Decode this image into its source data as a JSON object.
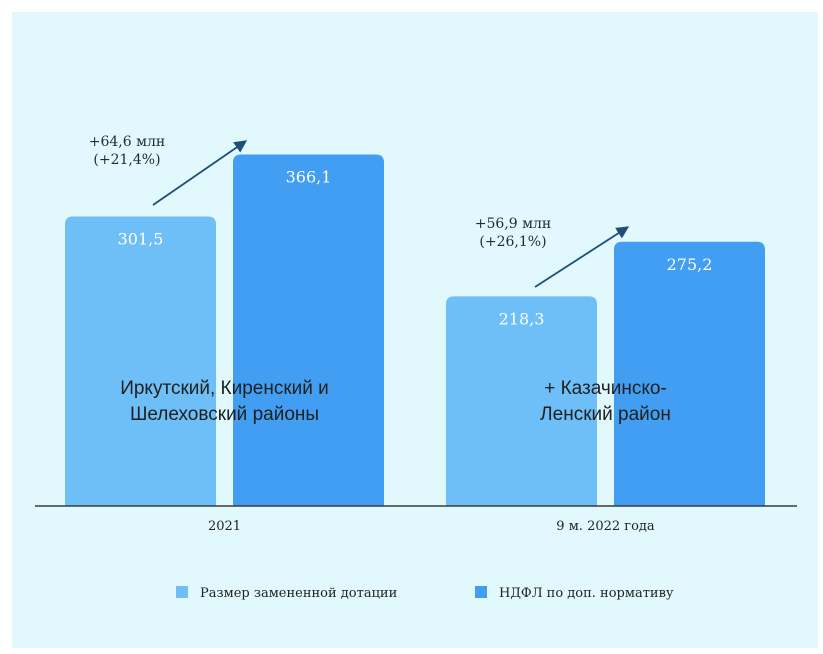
{
  "chart_data": {
    "type": "bar",
    "categories": [
      "2021",
      "9 м. 2022 года"
    ],
    "series": [
      {
        "name": "Размер замененной дотации",
        "values": [
          301.5,
          218.3
        ],
        "labels": [
          "301,5",
          "218,3"
        ]
      },
      {
        "name": "НДФЛ по доп. нормативу",
        "values": [
          366.1,
          275.2
        ],
        "labels": [
          "366,1",
          "275,2"
        ]
      }
    ],
    "colors": [
      "#6ebef7",
      "#429ef2"
    ],
    "group_labels": [
      [
        "Иркутский, Киренский и",
        "Шелеховский районы"
      ],
      [
        "+ Казачинско-",
        "Ленский район"
      ]
    ],
    "annotations": [
      [
        "+64,6 млн",
        "(+21,4%)"
      ],
      [
        "+56,9 млн",
        "(+26,1%)"
      ]
    ],
    "legend_position": "bottom",
    "grid": false
  }
}
